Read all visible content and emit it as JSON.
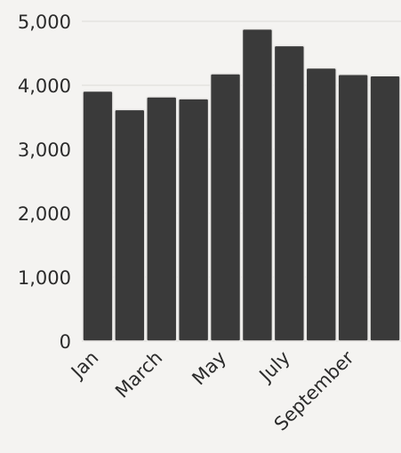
{
  "chart_data": {
    "type": "bar",
    "categories": [
      "Jan",
      "",
      "March",
      "",
      "May",
      "",
      "July",
      "",
      "September",
      ""
    ],
    "values": [
      3910,
      3620,
      3820,
      3790,
      4180,
      4880,
      4620,
      4270,
      4170,
      4150
    ],
    "yticks": [
      "0",
      "1,000",
      "2,000",
      "3,000",
      "4,000",
      "5,000"
    ],
    "ylim": [
      0,
      5000
    ],
    "grid": true,
    "colors": {
      "bar": "#3a3a3a",
      "text": "#2b2b2b",
      "background": "#f4f3f1"
    }
  }
}
